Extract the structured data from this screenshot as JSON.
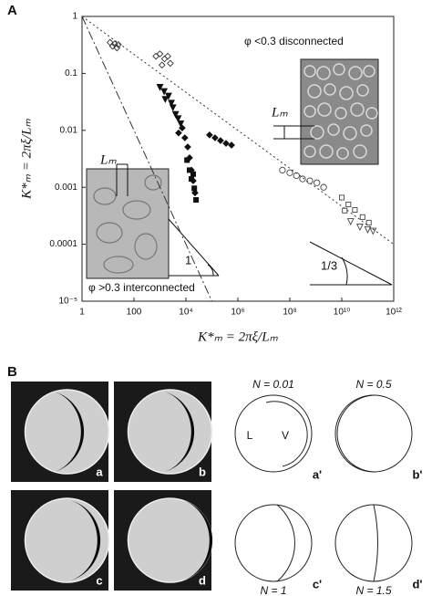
{
  "chart_data": {
    "type": "scatter",
    "panel_label": "A",
    "xlabel": "K*ₘ = 2πξ/Lₘ",
    "ylabel": "K*ₘ = 2πξ/Lₘ",
    "xscale": "log",
    "yscale": "log",
    "xlim": [
      1,
      1000000000000
    ],
    "ylim": [
      1e-05,
      1
    ],
    "xticks": [
      1,
      100,
      {
        "value": 10000,
        "label": "10⁴"
      },
      {
        "value": 1000000,
        "label": "10⁶"
      },
      {
        "value": 100000000,
        "label": "10⁸"
      },
      {
        "value": 10000000000,
        "label": "10¹⁰"
      },
      {
        "value": 1000000000000,
        "label": "10¹²"
      }
    ],
    "yticks": [
      {
        "value": 1e-05,
        "label": "10⁻⁵"
      },
      0.0001,
      0.001,
      0.01,
      0.1,
      1
    ],
    "annotations": [
      "φ <0.3 disconnected",
      "φ >0.3 interconnected",
      "1",
      "1/3",
      "Lₘ",
      "Lₘ"
    ],
    "series": [
      {
        "marker": "diamond-open",
        "color": "#333333",
        "x": [
          12,
          15,
          18,
          22,
          25,
          700,
          1000,
          1500,
          2000,
          1200,
          2500
        ],
        "values": [
          0.35,
          0.3,
          0.33,
          0.28,
          0.32,
          0.2,
          0.22,
          0.18,
          0.2,
          0.14,
          0.15
        ]
      },
      {
        "marker": "tri-down",
        "color": "#111111",
        "x": [
          1000,
          1450,
          2140,
          2750,
          3160,
          4000,
          5000,
          1600,
          6300
        ],
        "values": [
          0.057,
          0.048,
          0.04,
          0.03,
          0.025,
          0.019,
          0.016,
          0.035,
          0.013
        ]
      },
      {
        "marker": "diamond",
        "color": "#111111",
        "x": [
          7200,
          9100,
          11700,
          13800,
          16200,
          19100,
          22400,
          5200,
          132000,
          214000,
          350000,
          570000,
          81000
        ],
        "values": [
          0.011,
          0.0074,
          0.0051,
          0.0033,
          0.002,
          0.0013,
          0.0008,
          0.009,
          0.0074,
          0.0066,
          0.0059,
          0.0055,
          0.0083
        ]
      },
      {
        "marker": "square",
        "color": "#111111",
        "x": [
          11000,
          13800,
          16200,
          21000,
          24500,
          19100
        ],
        "values": [
          0.003,
          0.002,
          0.0014,
          0.00096,
          0.0006,
          0.0017
        ]
      },
      {
        "marker": "circle-open",
        "color": "#444444",
        "x": [
          52000000,
          100000000,
          180000000,
          310000000,
          590000000,
          1100000000,
          2000000000
        ],
        "values": [
          0.002,
          0.0018,
          0.0016,
          0.0014,
          0.0013,
          0.0012,
          0.001
        ]
      },
      {
        "marker": "square-open",
        "color": "#444444",
        "x": [
          10000000000,
          18000000000,
          32000000000,
          63000000000,
          110000000000,
          13000000000
        ],
        "values": [
          0.00066,
          0.0005,
          0.0004,
          0.0003,
          0.00024,
          0.00039
        ]
      },
      {
        "marker": "tri-down-open",
        "color": "#444444",
        "x": [
          22000000000,
          50000000000,
          100000000000,
          160000000000
        ],
        "values": [
          0.00025,
          0.0002,
          0.00018,
          0.00017
        ]
      },
      {
        "marker": "line",
        "dash": "2 3",
        "color": "#333333",
        "x": [
          1,
          1000000000000
        ],
        "values": [
          1,
          0.0001
        ]
      },
      {
        "marker": "line",
        "dash": "10 3 2 3",
        "color": "#333333",
        "x": [
          1,
          100000
        ],
        "values": [
          1,
          1e-05
        ]
      }
    ]
  },
  "panel_b": {
    "label": "B",
    "photos": [
      "a",
      "b",
      "c",
      "d"
    ],
    "L": "L",
    "V": "V",
    "schematics": [
      {
        "N": "N = 0.01",
        "label": "a'"
      },
      {
        "N": "N = 0.5",
        "label": "b'"
      },
      {
        "N": "N = 1",
        "label": "c'"
      },
      {
        "N": "N = 1.5",
        "label": "d'"
      }
    ]
  }
}
